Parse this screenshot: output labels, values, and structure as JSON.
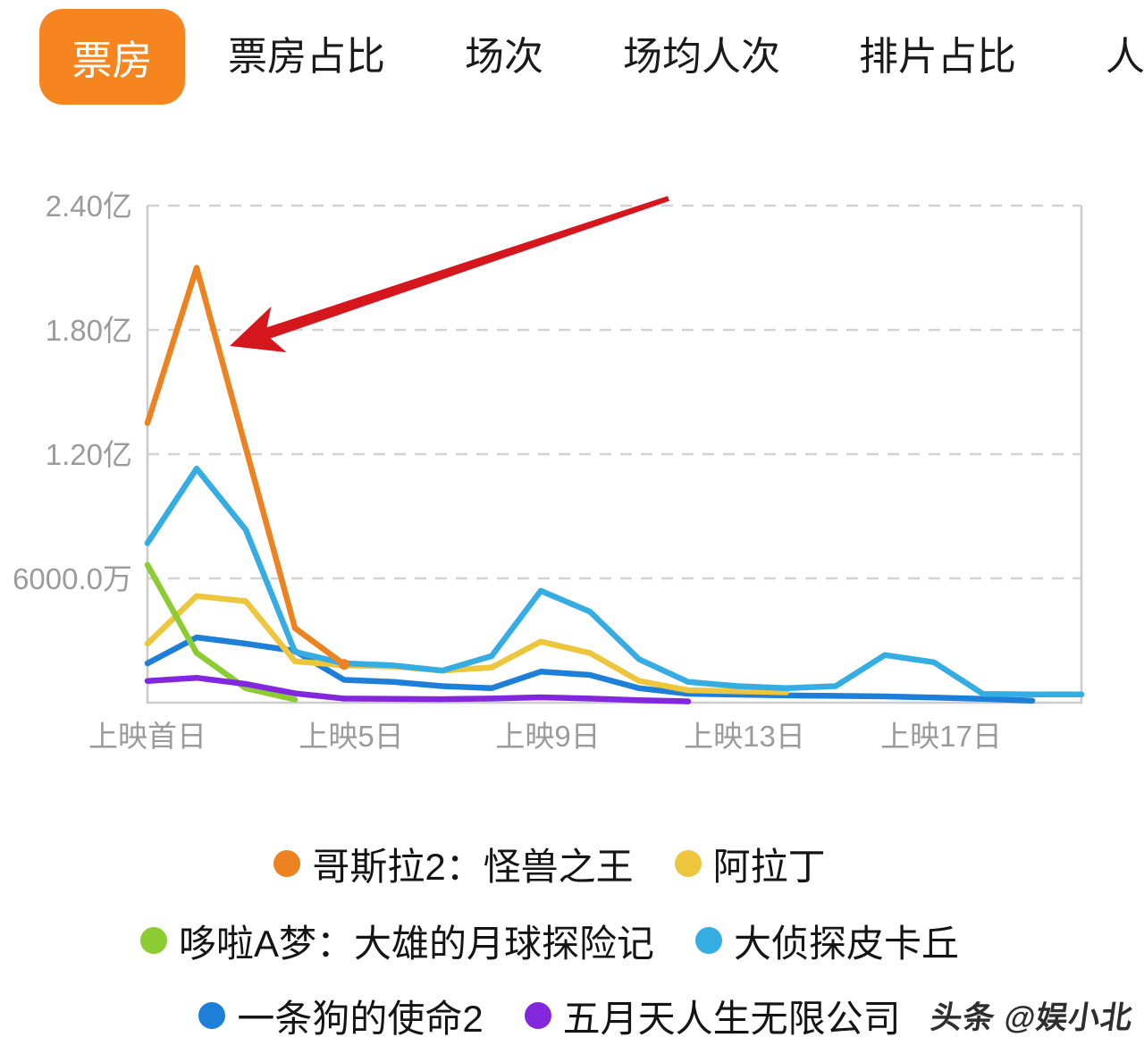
{
  "tab_bar": {
    "tabs": [
      {
        "label": "票房",
        "selected": true
      },
      {
        "label": "票房占比",
        "selected": false
      },
      {
        "label": "场次",
        "selected": false
      },
      {
        "label": "场均人次",
        "selected": false
      },
      {
        "label": "排片占比",
        "selected": false
      },
      {
        "label": "人次",
        "selected": false
      }
    ],
    "selected_tab_color": "#F6851F"
  },
  "chart_data": {
    "type": "line",
    "x_axis": {
      "unit": "上映天数",
      "days_min": 1,
      "days_max": 20,
      "label_positions": [
        {
          "day": 1,
          "label": "上映首日"
        },
        {
          "day": 5,
          "label": "上映5日"
        },
        {
          "day": 9,
          "label": "上映9日"
        },
        {
          "day": 13,
          "label": "上映13日"
        },
        {
          "day": 17,
          "label": "上映17日"
        }
      ]
    },
    "y_axis": {
      "unit": "万",
      "range": [
        0,
        24000
      ],
      "ticks": [
        {
          "value": 24000,
          "label": "2.40亿"
        },
        {
          "value": 18000,
          "label": "1.80亿"
        },
        {
          "value": 12000,
          "label": "1.20亿"
        },
        {
          "value": 6000,
          "label": "6000.0万"
        }
      ],
      "grid": "dashed"
    },
    "series": [
      {
        "name": "哥斯拉2：怪兽之王",
        "color": "#EC8220",
        "end_dot": true,
        "values": [
          13500,
          21000,
          12300,
          3600,
          1850
        ]
      },
      {
        "name": "阿拉丁",
        "color": "#EDC63E",
        "values": [
          2850,
          5150,
          4900,
          2000,
          1800,
          1750,
          1550,
          1700,
          2950,
          2400,
          1050,
          600,
          550,
          500
        ]
      },
      {
        "name": "哆啦A梦：大雄的月球探险记",
        "color": "#8CCC33",
        "values": [
          6650,
          2400,
          700,
          150
        ]
      },
      {
        "name": "大侦探皮卡丘",
        "color": "#35ACE2",
        "values": [
          7700,
          11300,
          8350,
          2450,
          1900,
          1800,
          1550,
          2250,
          5400,
          4400,
          2100,
          1000,
          800,
          700,
          800,
          2300,
          1950,
          420,
          400,
          400
        ]
      },
      {
        "name": "一条狗的使命2",
        "color": "#1E7FD8",
        "values": [
          1900,
          3150,
          2850,
          2500,
          1100,
          1000,
          800,
          700,
          1500,
          1340,
          700,
          430,
          390,
          350,
          330,
          300,
          250,
          180,
          100
        ]
      },
      {
        "name": "五月天人生无限公司",
        "color": "#8227DE",
        "values": [
          1050,
          1200,
          900,
          450,
          200,
          180,
          170,
          200,
          260,
          200,
          120,
          60
        ]
      }
    ],
    "draw_order": [
      4,
      1,
      2,
      5,
      3,
      0
    ],
    "annotation": {
      "type": "arrow",
      "color": "#D6161D",
      "from_xy": [
        748,
        222
      ],
      "to_xy": [
        257,
        387
      ],
      "points_at": "哥斯拉2：怪兽之王"
    }
  },
  "legend": {
    "rows": [
      [
        {
          "label": "哥斯拉2：怪兽之王",
          "color": "#EC8220"
        },
        {
          "label": "阿拉丁",
          "color": "#EDC63E"
        }
      ],
      [
        {
          "label": "哆啦A梦：大雄的月球探险记",
          "color": "#8CCC33"
        },
        {
          "label": "大侦探皮卡丘",
          "color": "#35ACE2"
        }
      ],
      [
        {
          "label": "一条狗的使命2",
          "color": "#1E7FD8"
        },
        {
          "label": "五月天人生无限公司",
          "color": "#8227DE"
        }
      ]
    ]
  },
  "watermark": "头条 @娱小北"
}
